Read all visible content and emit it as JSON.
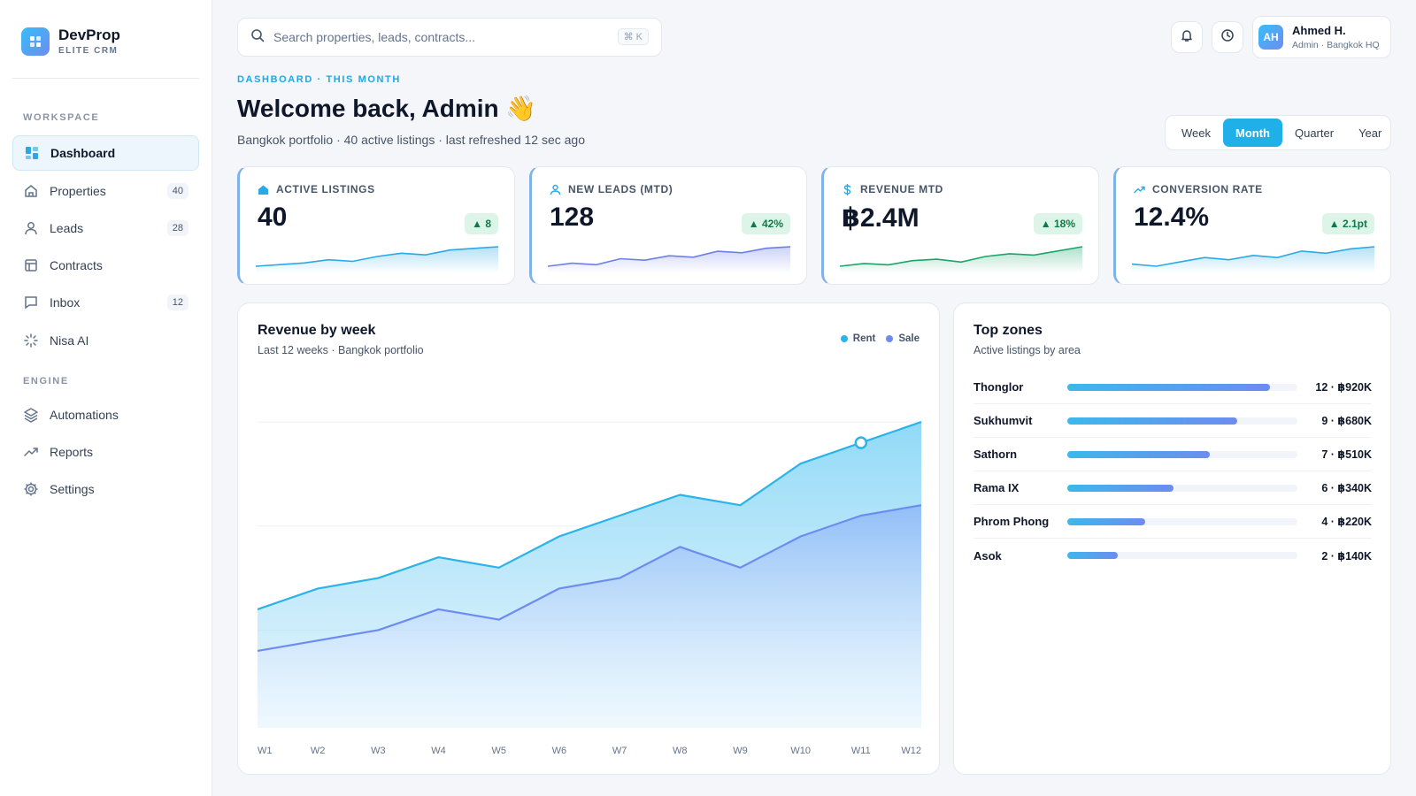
{
  "brand": {
    "name": "DevProp",
    "subtitle": "ELITE CRM"
  },
  "sidebar": {
    "sections": [
      "WORKSPACE",
      "ENGINE"
    ],
    "workspace_items": [
      {
        "label": "Dashboard",
        "icon": "dashboard-icon",
        "active": true
      },
      {
        "label": "Properties",
        "icon": "home-icon",
        "badge": "40"
      },
      {
        "label": "Leads",
        "icon": "user-icon",
        "badge": "28"
      },
      {
        "label": "Contracts",
        "icon": "contract-icon"
      },
      {
        "label": "Inbox",
        "icon": "inbox-icon",
        "badge": "12"
      },
      {
        "label": "Nisa AI",
        "icon": "ai-spinner-icon"
      }
    ],
    "engine_items": [
      {
        "label": "Automations",
        "icon": "layers-icon"
      },
      {
        "label": "Reports",
        "icon": "trend-icon"
      },
      {
        "label": "Settings",
        "icon": "gear-icon"
      }
    ]
  },
  "search": {
    "placeholder": "Search properties, leads, contracts...",
    "shortcut": "⌘ K"
  },
  "user": {
    "initials": "AH",
    "name": "Ahmed H.",
    "role": "Admin · Bangkok HQ"
  },
  "header": {
    "eyebrow": "DASHBOARD · THIS MONTH",
    "title": "Welcome back, Admin 👋",
    "subtitle": "Bangkok portfolio · 40 active listings · last refreshed 12 sec ago"
  },
  "range_tabs": [
    {
      "label": "Week",
      "active": false
    },
    {
      "label": "Month",
      "active": true
    },
    {
      "label": "Quarter",
      "active": false
    },
    {
      "label": "Year",
      "active": false
    }
  ],
  "kpis": [
    {
      "label": "ACTIVE LISTINGS",
      "value": "40",
      "delta": "▲ 8",
      "color": "#29a9e6",
      "spark": [
        2,
        3,
        4,
        6,
        5,
        8,
        10,
        9,
        12,
        13,
        14
      ]
    },
    {
      "label": "NEW LEADS (MTD)",
      "value": "128",
      "delta": "▲ 42%",
      "color": "#6d7fe6",
      "spark": [
        4,
        6,
        5,
        9,
        8,
        11,
        10,
        14,
        13,
        16,
        17
      ]
    },
    {
      "label": "REVENUE MTD",
      "value": "฿2.4M",
      "delta": "▲ 18%",
      "color": "#1aa56b",
      "spark": [
        3,
        5,
        4,
        7,
        8,
        6,
        10,
        12,
        11,
        14,
        17
      ]
    },
    {
      "label": "CONVERSION RATE",
      "value": "12.4%",
      "delta": "▲ 2.1pt",
      "color": "#29a9e6",
      "spark": [
        5,
        4,
        6,
        8,
        7,
        9,
        8,
        11,
        10,
        12,
        13
      ]
    }
  ],
  "revenue": {
    "title": "Revenue by week",
    "subtitle": "Last 12 weeks · Bangkok portfolio",
    "legend": [
      {
        "name": "Rent",
        "color": "#2bb3ea"
      },
      {
        "name": "Sale",
        "color": "#6d8cf0"
      }
    ]
  },
  "chart_data": {
    "type": "area",
    "x": [
      "W1",
      "W2",
      "W3",
      "W4",
      "W5",
      "W6",
      "W7",
      "W8",
      "W9",
      "W10",
      "W11",
      "W12"
    ],
    "series": [
      {
        "name": "Rent",
        "values": [
          57,
          67,
          72,
          82,
          77,
          92,
          102,
          112,
          107,
          127,
          137,
          147
        ],
        "color": "#2bb3ea"
      },
      {
        "name": "Sale",
        "values": [
          37,
          42,
          47,
          57,
          52,
          67,
          72,
          87,
          77,
          92,
          102,
          107
        ],
        "color": "#6d8cf0"
      }
    ],
    "ylim": [
      0,
      170
    ],
    "grid": true,
    "highlight": {
      "series": "Rent",
      "x": "W11"
    }
  },
  "zones": {
    "title": "Top zones",
    "subtitle": "Active listings by area",
    "rows": [
      {
        "name": "Thonglor",
        "share": 0.88,
        "value": "12 · ฿920K"
      },
      {
        "name": "Sukhumvit",
        "share": 0.74,
        "value": "9 · ฿680K"
      },
      {
        "name": "Sathorn",
        "share": 0.62,
        "value": "7 · ฿510K"
      },
      {
        "name": "Rama IX",
        "share": 0.46,
        "value": "6 · ฿340K"
      },
      {
        "name": "Phrom Phong",
        "share": 0.34,
        "value": "4 · ฿220K"
      },
      {
        "name": "Asok",
        "share": 0.22,
        "value": "2 · ฿140K"
      }
    ]
  }
}
